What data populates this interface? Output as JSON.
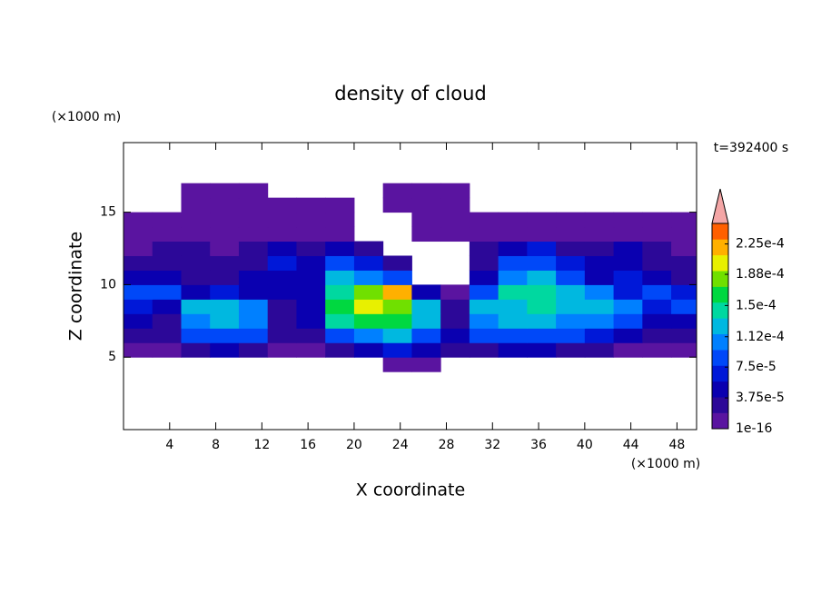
{
  "chart_data": {
    "type": "contour",
    "title": "density of cloud",
    "x_label": "X coordinate",
    "y_label": "Z coordinate",
    "x_unit": "(×1000 m)",
    "y_unit": "(×1000 m)",
    "annotation": "t=392400 s",
    "xlim": [
      0,
      49.7
    ],
    "ylim": [
      0,
      19.8
    ],
    "xticks": [
      4,
      8,
      12,
      16,
      20,
      24,
      28,
      32,
      36,
      40,
      44,
      48
    ],
    "yticks": [
      5,
      10,
      15
    ],
    "xbins": [
      0,
      2.5,
      5,
      7.5,
      10,
      12.5,
      15,
      17.5,
      20,
      22.5,
      25,
      27.5,
      30,
      32.5,
      35,
      37.5,
      40,
      42.5,
      45,
      47.5,
      50
    ],
    "zbins": [
      4,
      5,
      6,
      7,
      8,
      9,
      10,
      11,
      12,
      13,
      14,
      15,
      16,
      17
    ],
    "z": [
      [
        0,
        0,
        0,
        0,
        0,
        0,
        0,
        0,
        0,
        1e-06,
        1e-06,
        0,
        0,
        0,
        0,
        0,
        0,
        0,
        0,
        0
      ],
      [
        1e-06,
        1e-06,
        3e-05,
        4e-05,
        3e-05,
        1e-06,
        1e-06,
        3e-05,
        5e-05,
        6e-05,
        4e-05,
        2e-05,
        3e-05,
        4e-05,
        4e-05,
        3e-05,
        2e-05,
        1e-06,
        1e-06,
        1e-06
      ],
      [
        2e-05,
        2e-05,
        8e-05,
        9e-05,
        8e-05,
        2e-05,
        3e-05,
        9e-05,
        0.00011,
        0.00012,
        9e-05,
        4e-05,
        8e-05,
        9e-05,
        9e-05,
        8e-05,
        7e-05,
        5e-05,
        3e-05,
        3e-05
      ],
      [
        5e-05,
        3e-05,
        0.00011,
        0.00012,
        0.0001,
        3e-05,
        4e-05,
        0.00014,
        0.00016,
        0.00017,
        0.00013,
        3e-05,
        0.00011,
        0.00012,
        0.00012,
        0.00011,
        0.0001,
        8e-05,
        5e-05,
        5e-05
      ],
      [
        7e-05,
        4e-05,
        0.00012,
        0.00013,
        0.00011,
        3e-05,
        5e-05,
        0.00016,
        0.0002,
        0.00019,
        0.00012,
        2e-05,
        0.00012,
        0.00013,
        0.00014,
        0.00013,
        0.00012,
        0.0001,
        6e-05,
        8e-05
      ],
      [
        9e-05,
        8e-05,
        4e-05,
        6e-05,
        5e-05,
        4e-05,
        5e-05,
        0.00014,
        0.00018,
        0.00022,
        4e-05,
        1e-05,
        9e-05,
        0.00014,
        0.00015,
        0.00013,
        0.0001,
        7e-05,
        8e-05,
        6e-05
      ],
      [
        4e-05,
        5e-05,
        3e-05,
        3e-05,
        4e-05,
        5e-05,
        4e-05,
        0.00012,
        0.00011,
        8e-05,
        0,
        0,
        4e-05,
        0.00011,
        0.00013,
        9e-05,
        5e-05,
        6e-05,
        4e-05,
        3e-05
      ],
      [
        2e-05,
        3e-05,
        2e-05,
        2e-05,
        3e-05,
        6e-05,
        4e-05,
        9e-05,
        6e-05,
        3e-05,
        0,
        0,
        3e-05,
        8e-05,
        9e-05,
        6e-05,
        4e-05,
        5e-05,
        3e-05,
        2e-05
      ],
      [
        1e-05,
        2e-05,
        2e-05,
        1e-05,
        2e-05,
        4e-05,
        2e-05,
        5e-05,
        2e-05,
        0,
        0,
        0,
        2e-05,
        5e-05,
        6e-05,
        3e-05,
        2e-05,
        4e-05,
        2e-05,
        1e-05
      ],
      [
        1e-06,
        1e-06,
        1e-05,
        1e-06,
        1e-05,
        1e-05,
        1e-06,
        1e-05,
        0,
        0,
        1e-06,
        1e-06,
        1e-05,
        1e-05,
        1e-05,
        1e-06,
        1e-06,
        1e-05,
        1e-06,
        1e-06
      ],
      [
        1e-06,
        1e-06,
        1e-06,
        1e-06,
        1e-06,
        1e-06,
        1e-06,
        1e-06,
        0,
        0,
        1e-06,
        1e-06,
        1e-06,
        1e-06,
        1e-06,
        1e-06,
        1e-06,
        1e-06,
        1e-06,
        1e-06
      ],
      [
        0,
        0,
        1e-06,
        1e-06,
        1e-06,
        1e-06,
        1e-06,
        1e-06,
        0,
        1e-06,
        1e-06,
        1e-06,
        0,
        0,
        0,
        0,
        0,
        0,
        0,
        0
      ],
      [
        0,
        0,
        1e-06,
        1e-06,
        1e-06,
        0,
        0,
        0,
        0,
        1e-06,
        1e-06,
        1e-06,
        0,
        0,
        0,
        0,
        0,
        0,
        0,
        0
      ]
    ],
    "clim": [
      1e-16,
      0.00025
    ],
    "cticks": [
      {
        "value": 1e-16,
        "label": "1e-16"
      },
      {
        "value": 3.75e-05,
        "label": "3.75e-5"
      },
      {
        "value": 7.5e-05,
        "label": "7.5e-5"
      },
      {
        "value": 0.000112,
        "label": "1.12e-4"
      },
      {
        "value": 0.00015,
        "label": "1.5e-4"
      },
      {
        "value": 0.000188,
        "label": "1.88e-4"
      },
      {
        "value": 0.000225,
        "label": "2.25e-4"
      }
    ],
    "colors": [
      "#5a14a0",
      "#2c0898",
      "#0a00b0",
      "#0018d8",
      "#0048f8",
      "#0080ff",
      "#00b8e0",
      "#00d8a0",
      "#00d840",
      "#70e000",
      "#e8f000",
      "#ffb000",
      "#ff6000"
    ],
    "extend_color": "#f4a6a6"
  }
}
